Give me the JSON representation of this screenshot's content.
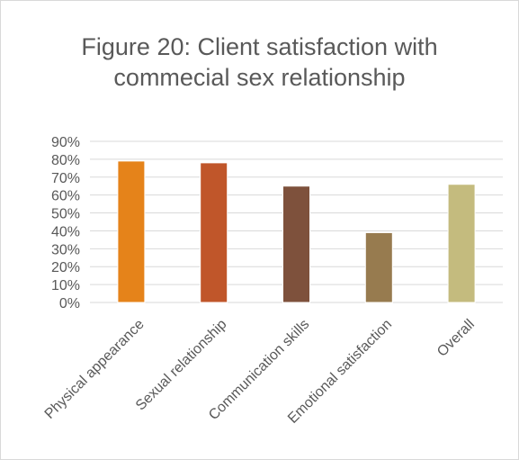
{
  "chart_data": {
    "type": "bar",
    "title_lines": [
      "Figure 20: Client satisfaction with",
      "commecial sex relationship"
    ],
    "categories": [
      "Physical appearance",
      "Sexual relationship",
      "Communication skills",
      "Emotional satisfaction",
      "Overall"
    ],
    "values": [
      0.79,
      0.78,
      0.65,
      0.39,
      0.66
    ],
    "bar_colors": [
      "#e5831a",
      "#c0562a",
      "#7e513c",
      "#977b4f",
      "#c4bb7e"
    ],
    "ylim": [
      0,
      0.9
    ],
    "yticks": [
      0,
      0.1,
      0.2,
      0.3,
      0.4,
      0.5,
      0.6,
      0.7,
      0.8,
      0.9
    ],
    "ytick_labels": [
      "0%",
      "10%",
      "20%",
      "30%",
      "40%",
      "50%",
      "60%",
      "70%",
      "80%",
      "90%"
    ],
    "grid": true,
    "legend": "none",
    "xlabel": "",
    "ylabel": ""
  }
}
